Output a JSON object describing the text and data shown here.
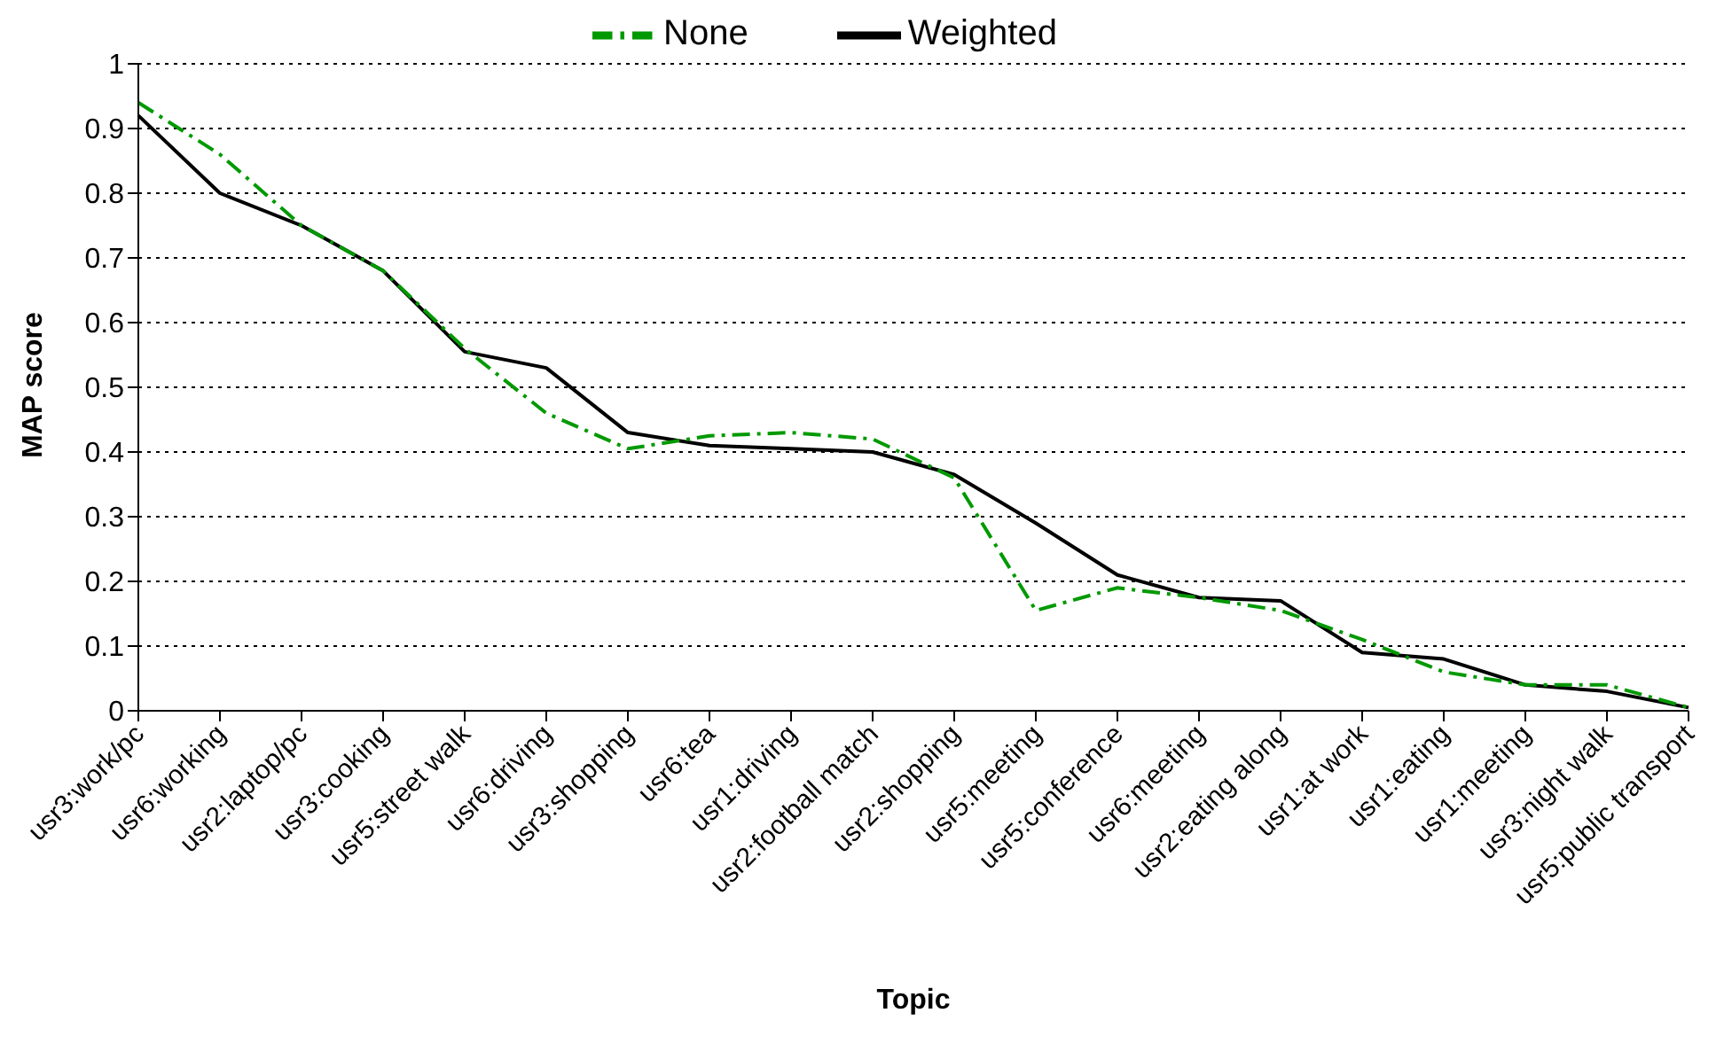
{
  "chart_data": {
    "type": "line",
    "xlabel": "Topic",
    "ylabel": "MAP score",
    "categories": [
      "usr3:work/pc",
      "usr6:working",
      "usr2:laptop/pc",
      "usr3:cooking",
      "usr5:street walk",
      "usr6:driving",
      "usr3:shopping",
      "usr6:tea",
      "usr1:driving",
      "usr2:football match",
      "usr2:shopping",
      "usr5:meeting",
      "usr5:conference",
      "usr6:meeting",
      "usr2:eating along",
      "usr1:at work",
      "usr1:eating",
      "usr1:meeting",
      "usr3:night walk",
      "usr5:public transport"
    ],
    "series": [
      {
        "name": "Weighted",
        "color": "#000000",
        "line_style": "solid",
        "values": [
          0.92,
          0.8,
          0.75,
          0.68,
          0.555,
          0.53,
          0.43,
          0.41,
          0.405,
          0.4,
          0.365,
          0.29,
          0.21,
          0.175,
          0.17,
          0.09,
          0.08,
          0.04,
          0.03,
          0.005
        ]
      },
      {
        "name": "None",
        "color": "#009900",
        "line_style": "dashdot",
        "values": [
          0.94,
          0.86,
          0.75,
          0.68,
          0.56,
          0.46,
          0.405,
          0.425,
          0.43,
          0.42,
          0.36,
          0.155,
          0.19,
          0.175,
          0.155,
          0.11,
          0.06,
          0.04,
          0.04,
          0.005
        ]
      }
    ],
    "ylim": [
      0,
      1
    ],
    "yticks": [
      0,
      0.1,
      0.2,
      0.3,
      0.4,
      0.5,
      0.6,
      0.7,
      0.8,
      0.9,
      1
    ],
    "grid": "y",
    "legend": "top",
    "marker": "none"
  }
}
